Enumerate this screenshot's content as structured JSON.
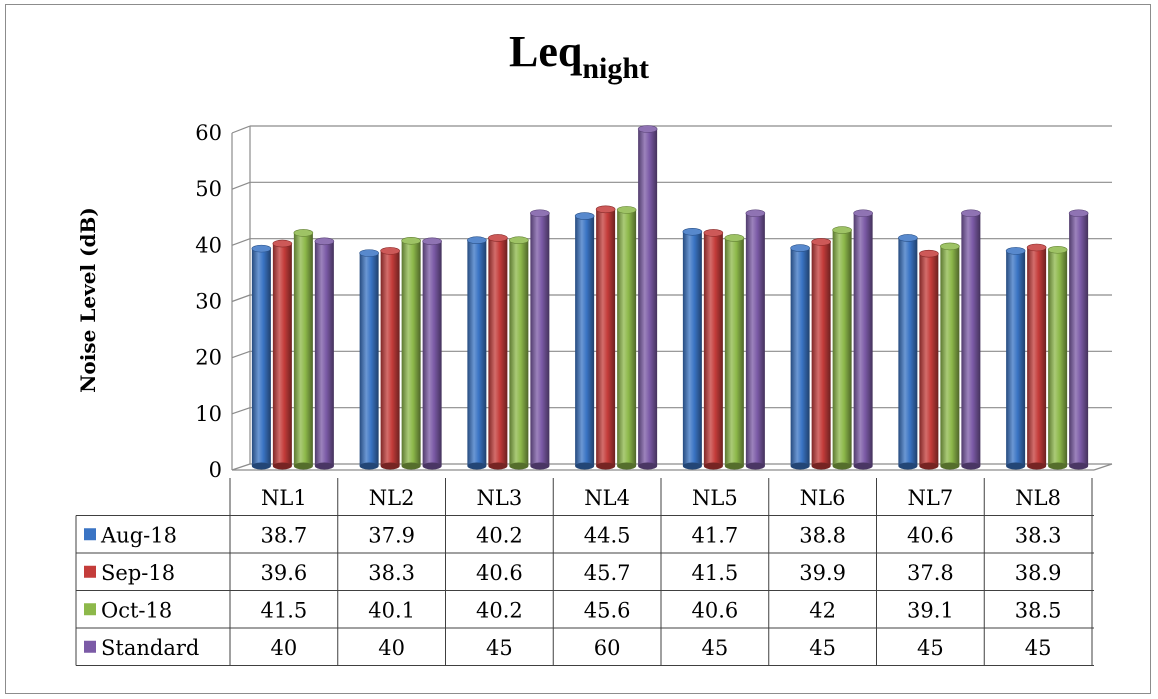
{
  "chart_data": {
    "type": "bar",
    "title": "Leq",
    "title_subscript": "night",
    "ylabel": "Noise Level (dB)",
    "ylim": [
      0,
      60
    ],
    "yticks": [
      "0",
      "10",
      "20",
      "30",
      "40",
      "50",
      "60"
    ],
    "grid": true,
    "legend": "data-table",
    "categories": [
      "NL1",
      "NL2",
      "NL3",
      "NL4",
      "NL5",
      "NL6",
      "NL7",
      "NL8"
    ],
    "series": [
      {
        "name": "Aug-18",
        "color": "#3a74c4",
        "values": [
          38.7,
          37.9,
          40.2,
          44.5,
          41.7,
          38.8,
          40.6,
          38.3
        ],
        "labels": [
          "38.7",
          "37.9",
          "40.2",
          "44.5",
          "41.7",
          "38.8",
          "40.6",
          "38.3"
        ]
      },
      {
        "name": "Sep-18",
        "color": "#c43c3a",
        "values": [
          39.6,
          38.3,
          40.6,
          45.7,
          41.5,
          39.9,
          37.8,
          38.9
        ],
        "labels": [
          "39.6",
          "38.3",
          "40.6",
          "45.7",
          "41.5",
          "39.9",
          "37.8",
          "38.9"
        ]
      },
      {
        "name": "Oct-18",
        "color": "#8db84a",
        "values": [
          41.5,
          40.1,
          40.2,
          45.6,
          40.6,
          42,
          39.1,
          38.5
        ],
        "labels": [
          "41.5",
          "40.1",
          "40.2",
          "45.6",
          "40.6",
          "42",
          "39.1",
          "38.5"
        ]
      },
      {
        "name": "Standard",
        "color": "#7b5aa6",
        "values": [
          40,
          40,
          45,
          60,
          45,
          45,
          45,
          45
        ],
        "labels": [
          "40",
          "40",
          "45",
          "60",
          "45",
          "45",
          "45",
          "45"
        ]
      }
    ]
  }
}
